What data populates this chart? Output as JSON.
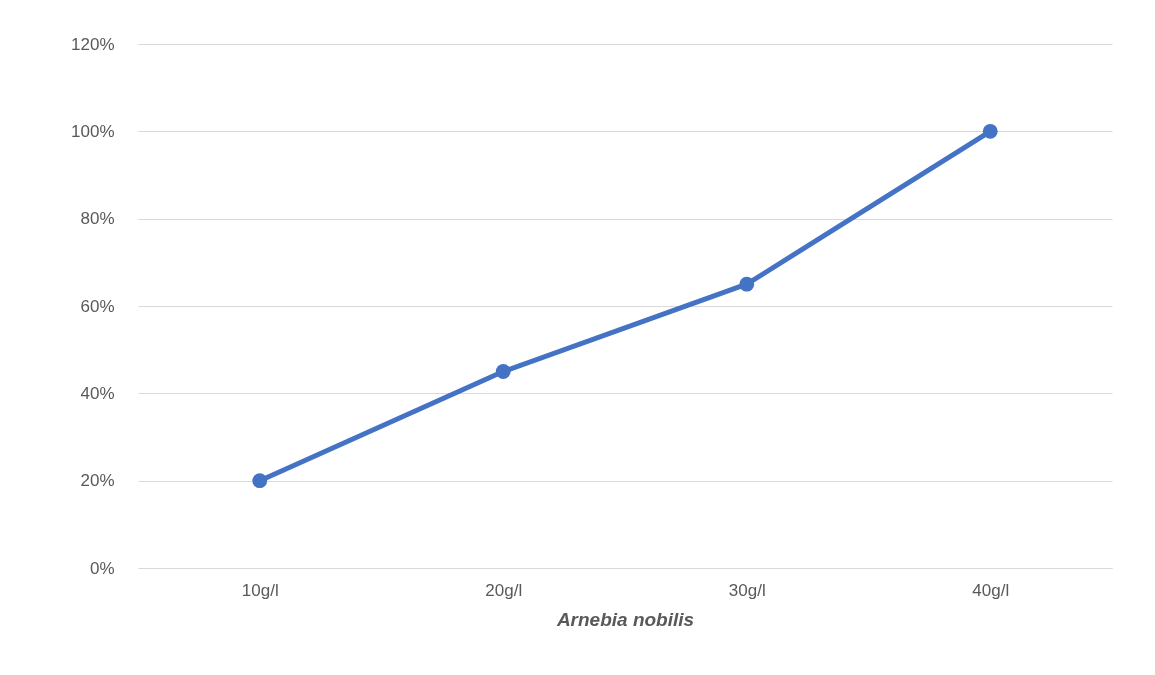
{
  "chart_data": {
    "type": "line",
    "xlabel": "Arnebia nobilis",
    "categories": [
      "10g/l",
      "20g/l",
      "30g/l",
      "40g/l"
    ],
    "series": [
      {
        "color": "#4472c4",
        "values": [
          20,
          45,
          65,
          100
        ]
      }
    ],
    "ylim": [
      0,
      120
    ],
    "yticks": [
      {
        "value": 0,
        "label": "0%"
      },
      {
        "value": 20,
        "label": "20%"
      },
      {
        "value": 40,
        "label": "40%"
      },
      {
        "value": 60,
        "label": "60%"
      },
      {
        "value": 80,
        "label": "80%"
      },
      {
        "value": 100,
        "label": "100%"
      },
      {
        "value": 120,
        "label": "120%"
      }
    ],
    "grid": "y",
    "marker": "circle",
    "line_style": "solid"
  }
}
